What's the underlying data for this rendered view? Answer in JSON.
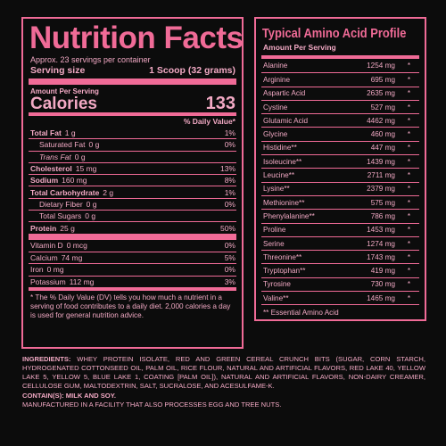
{
  "nutrition": {
    "title": "Nutrition Facts",
    "servings_per_container": "Approx. 23 servings per container",
    "serving_size_label": "Serving size",
    "serving_size_value": "1 Scoop (32 grams)",
    "amount_per_serving": "Amount Per Serving",
    "calories_label": "Calories",
    "calories_value": "133",
    "dv_header": "% Daily Value*",
    "rows": [
      {
        "name": "Total Fat",
        "amount": "1 g",
        "pct": "1%",
        "bold": true,
        "indent": 0
      },
      {
        "name": "Saturated Fat",
        "amount": "0 g",
        "pct": "0%",
        "bold": false,
        "indent": 1
      },
      {
        "name": "Trans Fat",
        "amount": "0 g",
        "pct": "",
        "bold": false,
        "indent": 1,
        "italic": true
      },
      {
        "name": "Cholesterol",
        "amount": "15 mg",
        "pct": "13%",
        "bold": true,
        "indent": 0
      },
      {
        "name": "Sodium",
        "amount": "160 mg",
        "pct": "8%",
        "bold": true,
        "indent": 0
      },
      {
        "name": "Total Carbohydrate",
        "amount": "2 g",
        "pct": "1%",
        "bold": true,
        "indent": 0
      },
      {
        "name": "Dietary Fiber",
        "amount": "0 g",
        "pct": "0%",
        "bold": false,
        "indent": 1
      },
      {
        "name": "Total Sugars",
        "amount": "0 g",
        "pct": "",
        "bold": false,
        "indent": 1
      },
      {
        "name": "Protein",
        "amount": "25 g",
        "pct": "50%",
        "bold": true,
        "indent": 0
      }
    ],
    "vitamins": [
      {
        "name": "Vitamin D",
        "amount": "0 mcg",
        "pct": "0%"
      },
      {
        "name": "Calcium",
        "amount": "74 mg",
        "pct": "5%"
      },
      {
        "name": "Iron",
        "amount": "0 mg",
        "pct": "0%"
      },
      {
        "name": "Potassium",
        "amount": "112 mg",
        "pct": "3%"
      }
    ],
    "footnote": "* The % Daily Value (DV) tells you how much a nutrient in a serving of food contributes to a daily diet. 2,000 calories a day is used for general nutrition advice."
  },
  "amino": {
    "title": "Typical Amino Acid Profile",
    "subtitle": "Amount Per Serving",
    "rows": [
      {
        "name": "Alanine",
        "value": "1254 mg",
        "mark": "*"
      },
      {
        "name": "Arginine",
        "value": "695 mg",
        "mark": "*"
      },
      {
        "name": "Aspartic Acid",
        "value": "2635 mg",
        "mark": "*"
      },
      {
        "name": "Cystine",
        "value": "527 mg",
        "mark": "*"
      },
      {
        "name": "Glutamic Acid",
        "value": "4462 mg",
        "mark": "*"
      },
      {
        "name": "Glycine",
        "value": "460 mg",
        "mark": "*"
      },
      {
        "name": "Histidine**",
        "value": "447 mg",
        "mark": "*"
      },
      {
        "name": "Isoleucine**",
        "value": "1439 mg",
        "mark": "*"
      },
      {
        "name": "Leucine**",
        "value": "2711 mg",
        "mark": "*"
      },
      {
        "name": "Lysine**",
        "value": "2379 mg",
        "mark": "*"
      },
      {
        "name": "Methionine**",
        "value": "575 mg",
        "mark": "*"
      },
      {
        "name": "Phenylalanine**",
        "value": "786 mg",
        "mark": "*"
      },
      {
        "name": "Proline",
        "value": "1453 mg",
        "mark": "*"
      },
      {
        "name": "Serine",
        "value": "1274 mg",
        "mark": "*"
      },
      {
        "name": "Threonine**",
        "value": "1743 mg",
        "mark": "*"
      },
      {
        "name": "Tryptophan**",
        "value": "419 mg",
        "mark": "*"
      },
      {
        "name": "Tyrosine",
        "value": "730 mg",
        "mark": "*"
      },
      {
        "name": "Valine**",
        "value": "1465 mg",
        "mark": "*"
      }
    ],
    "note": "** Essential Amino Acid"
  },
  "ingredients": {
    "label": "INGREDIENTS:",
    "text": "WHEY PROTEIN ISOLATE, RED AND GREEN CEREAL CRUNCH BITS (SUGAR, CORN STARCH, HYDROGENATED COTTONSEED OIL, PALM OIL, RICE FLOUR, NATURAL AND ARTIFICIAL FLAVORS, RED LAKE 40, YELLOW LAKE 5, YELLOW 5, BLUE LAKE 1, COATING [PALM OIL]), NATURAL AND ARTIFICIAL FLAVORS, NON-DAIRY CREAMER, CELLULOSE GUM, MALTODEXTRIN, SALT, SUCRALOSE, AND ACESULFAME-K.",
    "contains": "CONTAIN(S): MILK AND SOY.",
    "facility": "MANUFACTURED IN A FACILITY THAT ALSO PROCESSES EGG AND TREE NUTS."
  },
  "colors": {
    "accent": "#f06b97",
    "text": "#f2a9c4",
    "background": "#0c0c0c"
  }
}
